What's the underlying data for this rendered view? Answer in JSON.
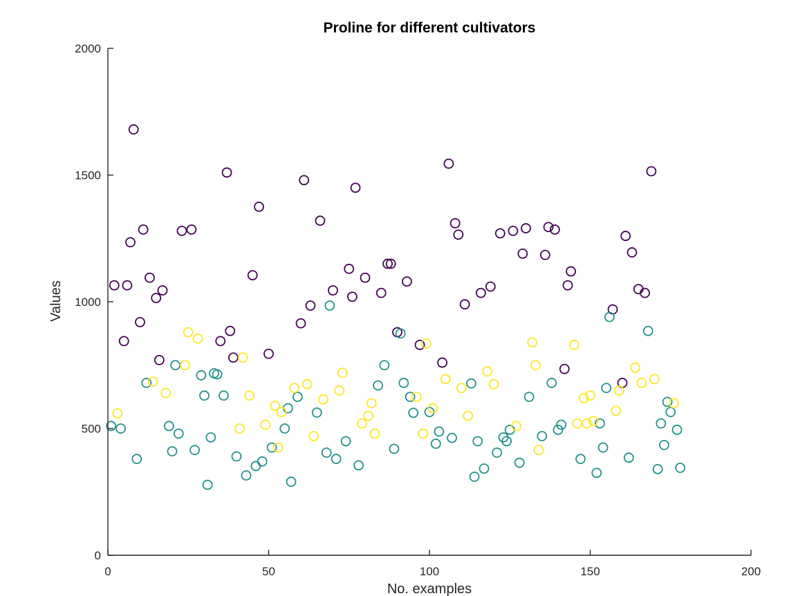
{
  "chart_data": {
    "type": "scatter",
    "title": "Proline for different cultivators",
    "xlabel": "No. examples",
    "ylabel": "Values",
    "xlim": [
      0,
      200
    ],
    "ylim": [
      0,
      2000
    ],
    "xticks": [
      0,
      50,
      100,
      150,
      200
    ],
    "yticks": [
      0,
      500,
      1000,
      1500,
      2000
    ],
    "grid": false,
    "legend": "none",
    "colors": {
      "axis": "#262626",
      "class1": "#440154",
      "class2": "#21918c",
      "class3": "#fde725"
    },
    "series": [
      {
        "color": "#440154",
        "points": [
          [
            2,
            1065
          ],
          [
            5,
            845
          ],
          [
            6,
            1065
          ],
          [
            7,
            1235
          ],
          [
            8,
            1680
          ],
          [
            10,
            920
          ],
          [
            11,
            1285
          ],
          [
            13,
            1095
          ],
          [
            15,
            1015
          ],
          [
            16,
            770
          ],
          [
            17,
            1045
          ],
          [
            23,
            1280
          ],
          [
            26,
            1285
          ],
          [
            35,
            845
          ],
          [
            37,
            1510
          ],
          [
            38,
            885
          ],
          [
            39,
            780
          ],
          [
            45,
            1105
          ],
          [
            47,
            1375
          ],
          [
            50,
            795
          ],
          [
            60,
            915
          ],
          [
            61,
            1480
          ],
          [
            63,
            985
          ],
          [
            66,
            1320
          ],
          [
            70,
            1045
          ],
          [
            75,
            1130
          ],
          [
            76,
            1020
          ],
          [
            77,
            1450
          ],
          [
            80,
            1095
          ],
          [
            85,
            1035
          ],
          [
            87,
            1150
          ],
          [
            88,
            1150
          ],
          [
            90,
            880
          ],
          [
            93,
            1080
          ],
          [
            97,
            830
          ],
          [
            104,
            760
          ],
          [
            106,
            1545
          ],
          [
            108,
            1310
          ],
          [
            109,
            1265
          ],
          [
            111,
            990
          ],
          [
            116,
            1035
          ],
          [
            119,
            1060
          ],
          [
            122,
            1270
          ],
          [
            126,
            1280
          ],
          [
            129,
            1190
          ],
          [
            130,
            1290
          ],
          [
            136,
            1185
          ],
          [
            137,
            1295
          ],
          [
            139,
            1285
          ],
          [
            142,
            735
          ],
          [
            143,
            1065
          ],
          [
            144,
            1120
          ],
          [
            157,
            970
          ],
          [
            160,
            680
          ],
          [
            161,
            1260
          ],
          [
            163,
            1195
          ],
          [
            165,
            1050
          ],
          [
            167,
            1035
          ],
          [
            169,
            1515
          ]
        ]
      },
      {
        "color": "#21918c",
        "points": [
          [
            1,
            510
          ],
          [
            4,
            500
          ],
          [
            9,
            380
          ],
          [
            12,
            680
          ],
          [
            19,
            510
          ],
          [
            20,
            410
          ],
          [
            21,
            750
          ],
          [
            22,
            480
          ],
          [
            27,
            415
          ],
          [
            29,
            710
          ],
          [
            30,
            630
          ],
          [
            31,
            278
          ],
          [
            32,
            465
          ],
          [
            33,
            718
          ],
          [
            34,
            714
          ],
          [
            36,
            630
          ],
          [
            40,
            390
          ],
          [
            43,
            315
          ],
          [
            46,
            352
          ],
          [
            48,
            370
          ],
          [
            51,
            425
          ],
          [
            55,
            500
          ],
          [
            56,
            580
          ],
          [
            57,
            290
          ],
          [
            59,
            625
          ],
          [
            65,
            563
          ],
          [
            68,
            405
          ],
          [
            69,
            985
          ],
          [
            71,
            380
          ],
          [
            74,
            450
          ],
          [
            78,
            355
          ],
          [
            84,
            670
          ],
          [
            86,
            750
          ],
          [
            89,
            420
          ],
          [
            91,
            875
          ],
          [
            92,
            680
          ],
          [
            94,
            625
          ],
          [
            95,
            562
          ],
          [
            100,
            565
          ],
          [
            102,
            440
          ],
          [
            103,
            488
          ],
          [
            107,
            463
          ],
          [
            113,
            678
          ],
          [
            114,
            310
          ],
          [
            115,
            450
          ],
          [
            117,
            342
          ],
          [
            121,
            405
          ],
          [
            123,
            465
          ],
          [
            124,
            450
          ],
          [
            125,
            495
          ],
          [
            128,
            365
          ],
          [
            131,
            625
          ],
          [
            135,
            470
          ],
          [
            138,
            680
          ],
          [
            140,
            495
          ],
          [
            141,
            515
          ],
          [
            147,
            380
          ],
          [
            152,
            325
          ],
          [
            153,
            520
          ],
          [
            154,
            425
          ],
          [
            155,
            660
          ],
          [
            156,
            940
          ],
          [
            162,
            385
          ],
          [
            168,
            885
          ],
          [
            171,
            340
          ],
          [
            172,
            520
          ],
          [
            173,
            435
          ],
          [
            174,
            605
          ],
          [
            175,
            565
          ],
          [
            177,
            495
          ],
          [
            178,
            345
          ]
        ]
      },
      {
        "color": "#fde725",
        "points": [
          [
            3,
            560
          ],
          [
            14,
            685
          ],
          [
            18,
            640
          ],
          [
            24,
            750
          ],
          [
            25,
            880
          ],
          [
            28,
            855
          ],
          [
            41,
            500
          ],
          [
            42,
            780
          ],
          [
            44,
            630
          ],
          [
            49,
            515
          ],
          [
            52,
            590
          ],
          [
            53,
            425
          ],
          [
            54,
            565
          ],
          [
            58,
            660
          ],
          [
            62,
            675
          ],
          [
            64,
            470
          ],
          [
            67,
            615
          ],
          [
            72,
            650
          ],
          [
            73,
            720
          ],
          [
            79,
            520
          ],
          [
            81,
            550
          ],
          [
            82,
            600
          ],
          [
            83,
            480
          ],
          [
            96,
            625
          ],
          [
            98,
            480
          ],
          [
            99,
            835
          ],
          [
            101,
            580
          ],
          [
            105,
            695
          ],
          [
            110,
            660
          ],
          [
            112,
            550
          ],
          [
            118,
            725
          ],
          [
            120,
            675
          ],
          [
            127,
            510
          ],
          [
            132,
            840
          ],
          [
            133,
            750
          ],
          [
            134,
            415
          ],
          [
            145,
            830
          ],
          [
            146,
            520
          ],
          [
            148,
            620
          ],
          [
            149,
            520
          ],
          [
            150,
            630
          ],
          [
            151,
            530
          ],
          [
            158,
            570
          ],
          [
            159,
            650
          ],
          [
            164,
            740
          ],
          [
            166,
            680
          ],
          [
            170,
            695
          ],
          [
            176,
            600
          ]
        ]
      }
    ]
  }
}
